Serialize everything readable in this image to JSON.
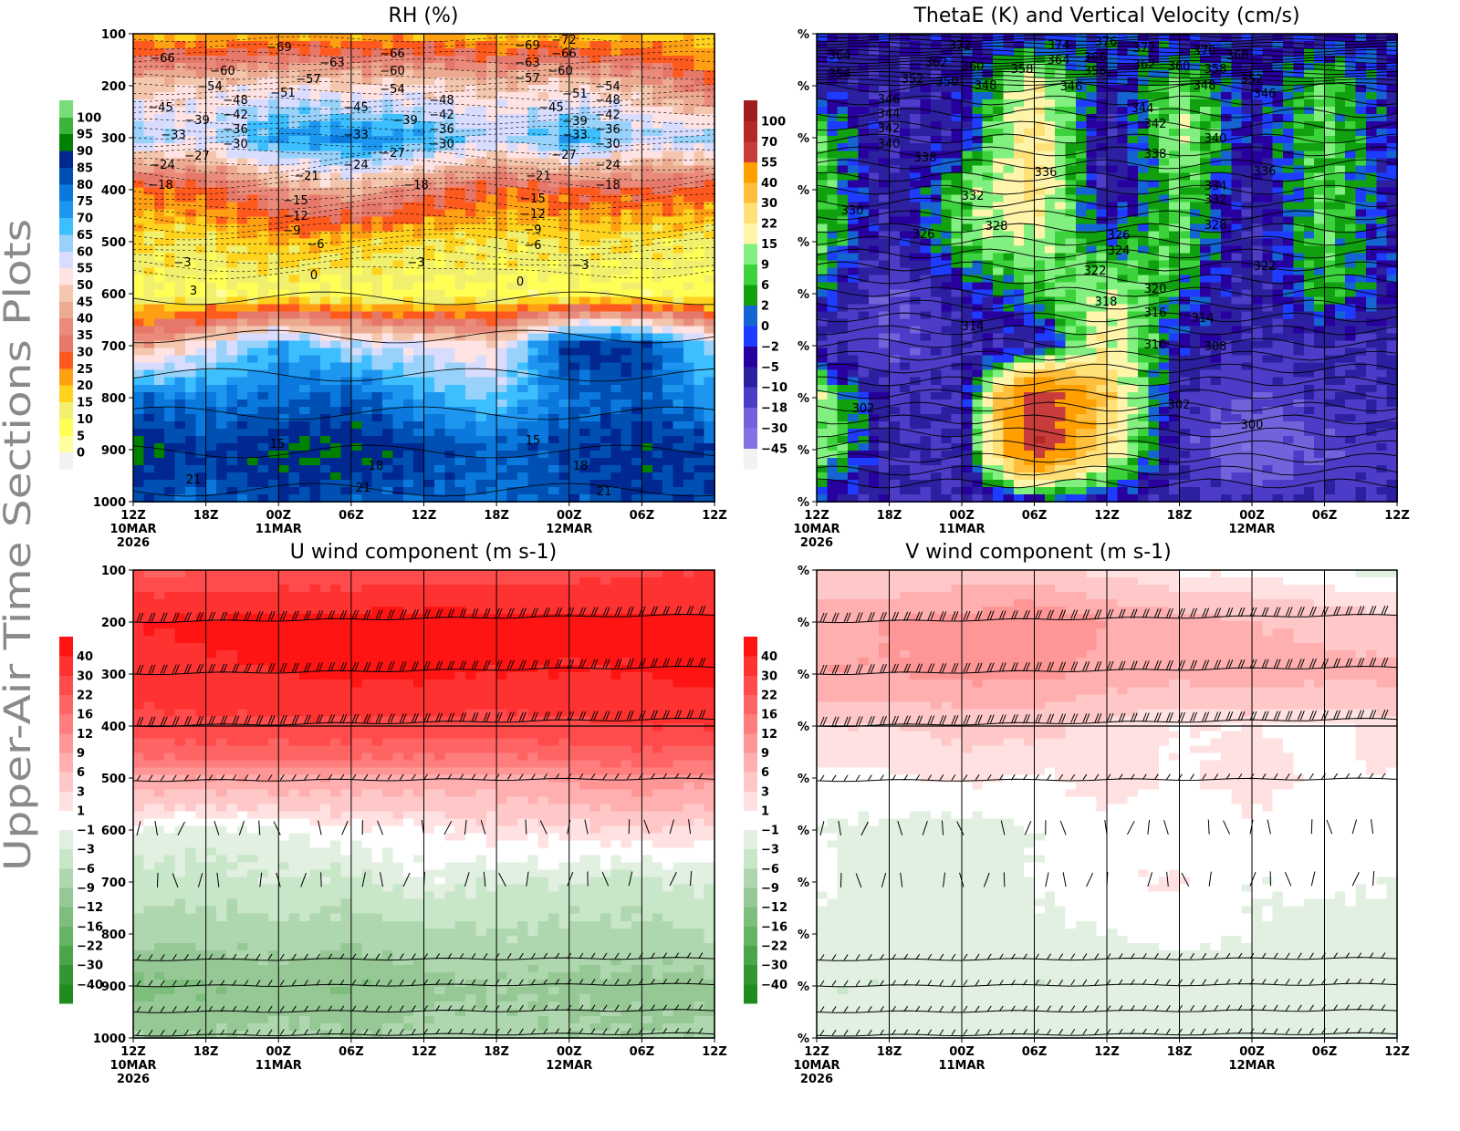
{
  "side_title": "Upper-Air Time Sections Plots",
  "time_axis": {
    "ticks": [
      "12Z",
      "18Z",
      "00Z",
      "06Z",
      "12Z",
      "18Z",
      "00Z",
      "06Z",
      "12Z"
    ],
    "dates": [
      {
        "label": "10MAR",
        "year": "2026",
        "tick_index": 0
      },
      {
        "label": "11MAR",
        "tick_index": 2
      },
      {
        "label": "12MAR",
        "tick_index": 6
      }
    ]
  },
  "pressure_axis": {
    "ticks": [
      "100",
      "200",
      "300",
      "400",
      "500",
      "600",
      "700",
      "800",
      "900",
      "1000"
    ],
    "placeholder_tick": "%"
  },
  "chart_data": [
    {
      "type": "heatmap",
      "title": "RH (%)",
      "x": [
        "12Z 10MAR",
        "18Z",
        "00Z 11MAR",
        "06Z",
        "12Z",
        "18Z",
        "00Z 12MAR",
        "06Z",
        "12Z"
      ],
      "y": [
        100,
        200,
        300,
        400,
        500,
        600,
        700,
        800,
        900,
        1000
      ],
      "ylim": [
        1000,
        100
      ],
      "colorbar": {
        "levels": [
          0,
          5,
          10,
          15,
          20,
          25,
          30,
          35,
          40,
          45,
          50,
          55,
          60,
          65,
          70,
          75,
          80,
          85,
          90,
          95,
          100
        ],
        "colors": [
          "#f2f2f2",
          "#ffffa0",
          "#ffff55",
          "#f0f06e",
          "#ffd21e",
          "#ffa014",
          "#ff5a1e",
          "#e6786a",
          "#ea8a7a",
          "#ecaa90",
          "#f4c6ae",
          "#ffe2e2",
          "#d8dcff",
          "#98d2fa",
          "#3cbeff",
          "#1e96f0",
          "#0a78dc",
          "#0050b4",
          "#002890",
          "#008200",
          "#3cb43c",
          "#78dc78"
        ]
      },
      "values": [
        [
          18,
          18,
          20,
          20,
          20,
          18,
          18,
          18,
          15
        ],
        [
          48,
          50,
          52,
          50,
          50,
          48,
          50,
          45,
          30
        ],
        [
          62,
          58,
          72,
          75,
          70,
          58,
          72,
          60,
          62
        ],
        [
          25,
          28,
          40,
          45,
          35,
          28,
          30,
          30,
          28
        ],
        [
          15,
          15,
          20,
          18,
          15,
          14,
          14,
          14,
          12
        ],
        [
          10,
          8,
          10,
          8,
          8,
          8,
          8,
          8,
          8
        ],
        [
          40,
          55,
          70,
          60,
          55,
          50,
          88,
          85,
          60
        ],
        [
          80,
          75,
          78,
          82,
          70,
          65,
          78,
          82,
          72
        ],
        [
          92,
          85,
          90,
          91,
          85,
          80,
          84,
          88,
          85
        ],
        [
          82,
          80,
          85,
          82,
          80,
          78,
          82,
          85,
          82
        ]
      ],
      "contour_labels": [
        "-66",
        "-69",
        "-60",
        "-63",
        "-66",
        "-57",
        "-54",
        "-51",
        "-60",
        "-54",
        "-48",
        "-45",
        "-42",
        "-39",
        "-36",
        "-33",
        "-30",
        "-27",
        "-24",
        "-21",
        "-24",
        "-27",
        "-18",
        "-18",
        "-15",
        "-12",
        "-9",
        "-6",
        "-3",
        "0",
        "3",
        "-3",
        "-45",
        "-39",
        "-33",
        "-48",
        "-42",
        "-36",
        "-30",
        "-69",
        "-72",
        "-66",
        "-63",
        "-60",
        "-57",
        "-51",
        "-54",
        "-48",
        "-45",
        "-42",
        "-39",
        "-36",
        "-33",
        "-30",
        "-27",
        "-24",
        "-21",
        "-18",
        "-15",
        "-12",
        "-9",
        "-6",
        "-3",
        "0",
        "15",
        "18",
        "21",
        "21",
        "15",
        "18",
        "21"
      ]
    },
    {
      "type": "heatmap",
      "title": "ThetaE (K) and Vertical Velocity (cm/s)",
      "x": [
        "12Z 10MAR",
        "18Z",
        "00Z 11MAR",
        "06Z",
        "12Z",
        "18Z",
        "00Z 12MAR",
        "06Z",
        "12Z"
      ],
      "y": [
        100,
        200,
        300,
        400,
        500,
        600,
        700,
        800,
        900,
        1000
      ],
      "colorbar": {
        "levels": [
          -45,
          -30,
          -18,
          -10,
          -5,
          -2,
          0,
          2,
          6,
          9,
          15,
          22,
          30,
          40,
          55,
          70,
          100
        ],
        "colors": [
          "#f2f2f2",
          "#8272e6",
          "#7262dc",
          "#4c3cc8",
          "#2d20a0",
          "#2800a0",
          "#1e3cff",
          "#1464d2",
          "#10a010",
          "#3cd23c",
          "#82f080",
          "#fff5aa",
          "#ffe178",
          "#ffbe3c",
          "#ffa000",
          "#c83c3c",
          "#b42828",
          "#a01e1e"
        ]
      },
      "values": [
        [
          -5,
          -5,
          -5,
          -5,
          0,
          -5,
          -5,
          -5,
          -2
        ],
        [
          -5,
          -10,
          -5,
          20,
          -5,
          10,
          -5,
          9,
          -5
        ],
        [
          9,
          -10,
          -5,
          25,
          -10,
          15,
          -5,
          9,
          -5
        ],
        [
          9,
          -10,
          9,
          25,
          -10,
          9,
          -10,
          9,
          -5
        ],
        [
          9,
          -10,
          9,
          15,
          2,
          9,
          -10,
          9,
          -5
        ],
        [
          2,
          -18,
          -5,
          6,
          15,
          2,
          -10,
          6,
          -5
        ],
        [
          -10,
          -18,
          -10,
          -10,
          22,
          -5,
          -10,
          -10,
          -10
        ],
        [
          15,
          -10,
          -10,
          70,
          30,
          -10,
          -18,
          -10,
          -10
        ],
        [
          15,
          -10,
          -10,
          70,
          22,
          -10,
          -30,
          -18,
          -10
        ],
        [
          -5,
          -10,
          -10,
          -5,
          -5,
          -10,
          -10,
          -10,
          -10
        ]
      ],
      "contour_labels": [
        "364",
        "354",
        "372",
        "362",
        "360",
        "352",
        "350",
        "348",
        "358",
        "374",
        "376",
        "364",
        "366",
        "356",
        "372",
        "362",
        "360",
        "370",
        "368",
        "358",
        "352",
        "348",
        "346",
        "346",
        "346",
        "344",
        "342",
        "340",
        "338",
        "344",
        "342",
        "338",
        "340",
        "336",
        "336",
        "334",
        "332",
        "332",
        "330",
        "328",
        "328",
        "326",
        "326",
        "324",
        "322",
        "322",
        "320",
        "318",
        "316",
        "314",
        "314",
        "310",
        "308",
        "302",
        "302",
        "300"
      ]
    },
    {
      "type": "heatmap",
      "title": "U wind component (m s-1)",
      "x": [
        "12Z 10MAR",
        "18Z",
        "00Z 11MAR",
        "06Z",
        "12Z",
        "18Z",
        "00Z 12MAR",
        "06Z",
        "12Z"
      ],
      "y": [
        100,
        200,
        300,
        400,
        500,
        600,
        700,
        800,
        900,
        1000
      ],
      "colorbar": {
        "levels": [
          -40,
          -30,
          -22,
          -16,
          -12,
          -9,
          -6,
          -3,
          -1,
          1,
          3,
          6,
          9,
          12,
          16,
          22,
          30,
          40
        ],
        "colors": [
          "#1e8c1e",
          "#329632",
          "#4ba54b",
          "#64b464",
          "#7dbe7d",
          "#96c896",
          "#afd7af",
          "#c8e6c8",
          "#e1f0e1",
          "#ffffff",
          "#ffe1e1",
          "#ffc8c8",
          "#ffafaf",
          "#ff9696",
          "#ff7d7d",
          "#ff6464",
          "#ff4b4b",
          "#ff3232",
          "#ff1414"
        ]
      },
      "values": [
        [
          20,
          21,
          22,
          22,
          24,
          24,
          26,
          28,
          30
        ],
        [
          40,
          42,
          44,
          45,
          45,
          44,
          42,
          42,
          42
        ],
        [
          36,
          38,
          40,
          42,
          42,
          40,
          40,
          40,
          45
        ],
        [
          26,
          28,
          28,
          28,
          27,
          26,
          28,
          30,
          30
        ],
        [
          8,
          9,
          9,
          8,
          8,
          8,
          10,
          12,
          10
        ],
        [
          -1,
          -2,
          -1,
          0.5,
          0.5,
          2,
          2,
          3,
          2
        ],
        [
          -4,
          -4,
          -3,
          -4,
          -1,
          -3,
          -3,
          -4,
          -2
        ],
        [
          -8,
          -8,
          -7,
          -8,
          -7,
          -6,
          -7,
          -7,
          -6
        ],
        [
          -13,
          -12,
          -11,
          -12,
          -10,
          -9,
          -10,
          -10,
          -10
        ],
        [
          -9,
          -9,
          -8,
          -9,
          -8,
          -8,
          -8,
          -9,
          -8
        ]
      ]
    },
    {
      "type": "heatmap",
      "title": "V wind component (m s-1)",
      "x": [
        "12Z 10MAR",
        "18Z",
        "00Z 11MAR",
        "06Z",
        "12Z",
        "18Z",
        "00Z 12MAR",
        "06Z",
        "12Z"
      ],
      "y": [
        100,
        200,
        300,
        400,
        500,
        600,
        700,
        800,
        900,
        1000
      ],
      "colorbar": {
        "levels": [
          -40,
          -30,
          -22,
          -16,
          -12,
          -9,
          -6,
          -3,
          -1,
          1,
          3,
          6,
          9,
          12,
          16,
          22,
          30,
          40
        ],
        "colors": [
          "#1e8c1e",
          "#329632",
          "#4ba54b",
          "#64b464",
          "#7dbe7d",
          "#96c896",
          "#afd7af",
          "#c8e6c8",
          "#e1f0e1",
          "#ffffff",
          "#ffe1e1",
          "#ffc8c8",
          "#ffafaf",
          "#ff9696",
          "#ff7d7d",
          "#ff6464",
          "#ff4b4b",
          "#ff3232",
          "#ff1414"
        ]
      },
      "values": [
        [
          3,
          3,
          4,
          4,
          2,
          0.5,
          0.5,
          -1,
          -2
        ],
        [
          8,
          9,
          10,
          12,
          9,
          7,
          6,
          5,
          4
        ],
        [
          9,
          9,
          10,
          10,
          8,
          7,
          8,
          7,
          7
        ],
        [
          3,
          3,
          4,
          4,
          2,
          1,
          1,
          0.5,
          2
        ],
        [
          0.5,
          0.5,
          1.5,
          0.5,
          2,
          0.5,
          2,
          0.5,
          1
        ],
        [
          -1,
          -1.5,
          -2,
          -1,
          0.5,
          -0.5,
          0.5,
          -0.5,
          0
        ],
        [
          -0.5,
          -2,
          -1.5,
          -1,
          0.5,
          1.5,
          -1,
          -0.5,
          -1
        ],
        [
          -1.5,
          -2,
          -2,
          -1.5,
          -1,
          -0.5,
          -1,
          -2,
          -1.5
        ],
        [
          -3,
          -3,
          -2,
          -3,
          -2,
          -2,
          -2,
          -2.5,
          -2
        ],
        [
          -2,
          -2,
          -1.5,
          -2,
          -1.5,
          -2,
          -2,
          -2,
          -1.5
        ]
      ]
    }
  ]
}
